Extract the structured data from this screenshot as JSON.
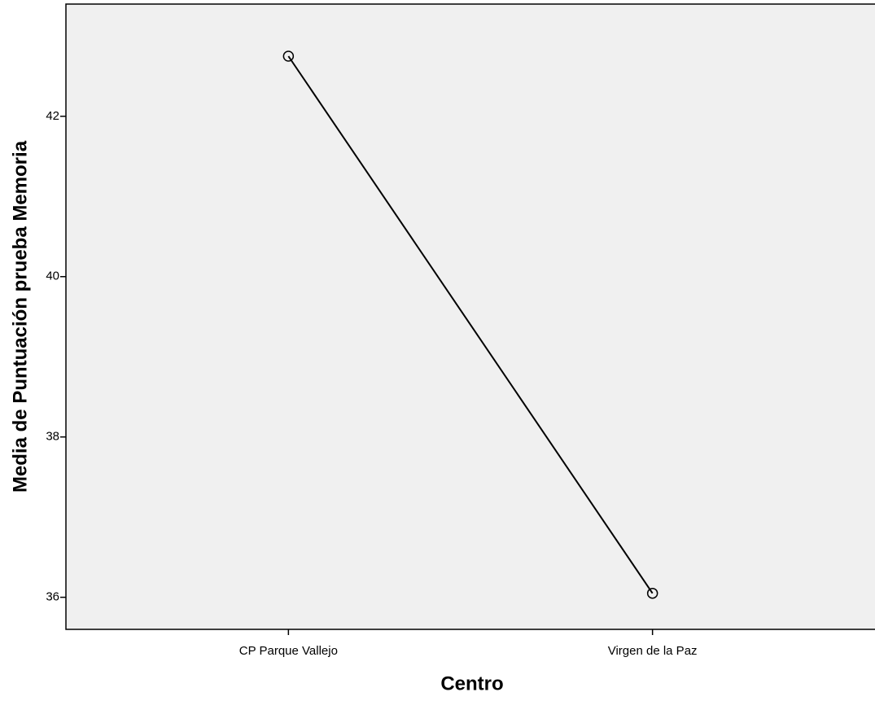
{
  "chart_data": {
    "type": "line",
    "categories": [
      "CP Parque Vallejo",
      "Virgen de la Paz"
    ],
    "series": [
      {
        "name": null,
        "color": "#000000",
        "values": [
          42.75,
          36.05
        ]
      }
    ],
    "ylim": [
      35.6,
      43.4
    ],
    "yticks": [
      36,
      38,
      40,
      42
    ],
    "xlabel": "Centro",
    "ylabel": "Media de Puntuación prueba Memoria",
    "grid": false
  }
}
